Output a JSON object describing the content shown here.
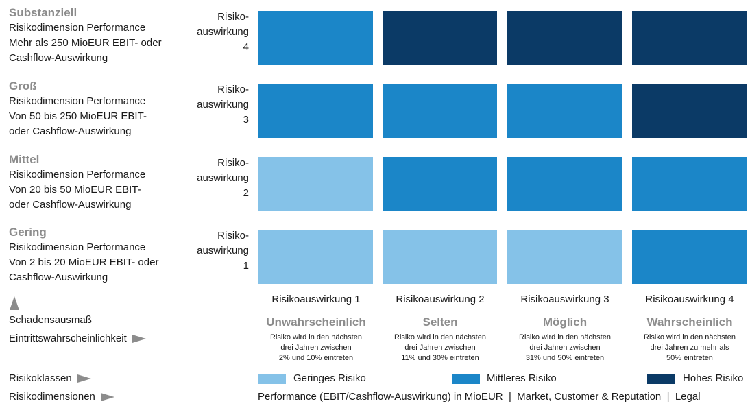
{
  "rows": [
    {
      "title": "Substanziell",
      "lines": [
        "Risikodimension Performance",
        "Mehr als 250 MioEUR EBIT- oder",
        "Cashflow-Auswirkung"
      ],
      "impact": [
        "Risiko-",
        "auswirkung",
        "4"
      ]
    },
    {
      "title": "Groß",
      "lines": [
        "Risikodimension Performance",
        "Von 50 bis 250 MioEUR EBIT-",
        "oder Cashflow-Auswirkung"
      ],
      "impact": [
        "Risiko-",
        "auswirkung",
        "3"
      ]
    },
    {
      "title": "Mittel",
      "lines": [
        "Risikodimension Performance",
        "Von 20 bis 50 MioEUR EBIT-",
        "oder Cashflow-Auswirkung"
      ],
      "impact": [
        "Risiko-",
        "auswirkung",
        "2"
      ]
    },
    {
      "title": "Gering",
      "lines": [
        "Risikodimension Performance",
        "Von 2 bis 20 MioEUR EBIT- oder",
        "Cashflow-Auswirkung"
      ],
      "impact": [
        "Risiko-",
        "auswirkung",
        "1"
      ]
    }
  ],
  "columns": [
    {
      "label": "Risikoauswirkung 1",
      "prob": "Unwahrscheinlich",
      "desc": [
        "Risiko wird in den nächsten",
        "drei Jahren zwischen",
        "2% und 10% eintreten"
      ]
    },
    {
      "label": "Risikoauswirkung 2",
      "prob": "Selten",
      "desc": [
        "Risiko wird in den nächsten",
        "drei Jahren zwischen",
        "11% und 30% eintreten"
      ]
    },
    {
      "label": "Risikoauswirkung 3",
      "prob": "Möglich",
      "desc": [
        "Risiko wird in den nächsten",
        "drei Jahren zwischen",
        "31% und 50% eintreten"
      ]
    },
    {
      "label": "Risikoauswirkung 4",
      "prob": "Wahrscheinlich",
      "desc": [
        "Risiko wird in den nächsten",
        "drei Jahren zu mehr als",
        "50% eintreten"
      ]
    }
  ],
  "axis": {
    "y_label": "Schadensausmaß",
    "x_label": "Eintrittswahrscheinlichkeit",
    "classes_label": "Risikoklassen",
    "dimensions_label": "Risikodimensionen",
    "dimensions_text": "Performance (EBIT/Cashflow-Auswirkung) in MioEUR  |  Market, Customer & Reputation  |  Legal"
  },
  "legend": [
    {
      "label": "Geringes Risiko",
      "color": "#85c2e8"
    },
    {
      "label": "Mittleres Risiko",
      "color": "#1b86c8"
    },
    {
      "label": "Hohes Risiko",
      "color": "#0b3a66"
    }
  ],
  "chart_data": {
    "type": "heatmap",
    "rows": [
      "4",
      "3",
      "2",
      "1"
    ],
    "columns": [
      "1",
      "2",
      "3",
      "4"
    ],
    "classes": [
      [
        "Mittleres Risiko",
        "Hohes Risiko",
        "Hohes Risiko",
        "Hohes Risiko"
      ],
      [
        "Mittleres Risiko",
        "Mittleres Risiko",
        "Mittleres Risiko",
        "Hohes Risiko"
      ],
      [
        "Geringes Risiko",
        "Mittleres Risiko",
        "Mittleres Risiko",
        "Mittleres Risiko"
      ],
      [
        "Geringes Risiko",
        "Geringes Risiko",
        "Geringes Risiko",
        "Mittleres Risiko"
      ]
    ],
    "colors": {
      "Geringes Risiko": "#85c2e8",
      "Mittleres Risiko": "#1b86c8",
      "Hohes Risiko": "#0b3a66"
    }
  }
}
